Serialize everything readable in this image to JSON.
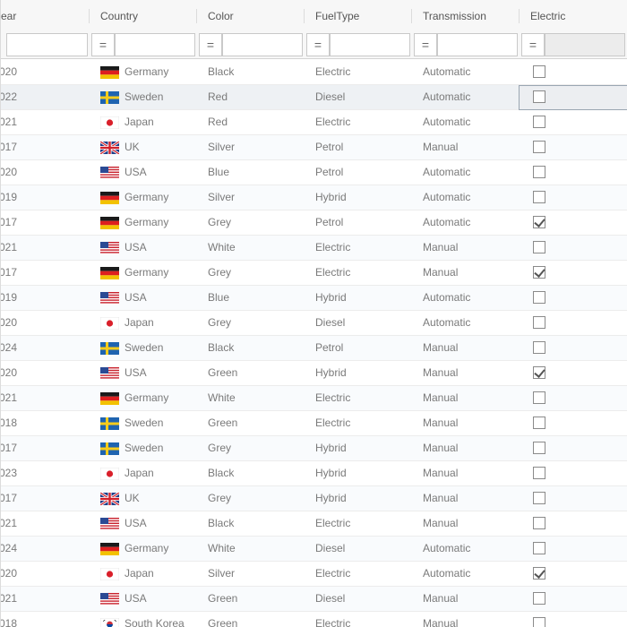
{
  "columns": [
    "ear",
    "Country",
    "Color",
    "FuelType",
    "Transmission",
    "Electric"
  ],
  "filter": {
    "operator": "=",
    "values": [
      "",
      "",
      "",
      "",
      "",
      ""
    ]
  },
  "selected_row": 1,
  "rows": [
    {
      "year": "020",
      "country": "Germany",
      "flag": "de",
      "color": "Black",
      "fuel": "Electric",
      "transmission": "Automatic",
      "electric": false
    },
    {
      "year": "022",
      "country": "Sweden",
      "flag": "se",
      "color": "Red",
      "fuel": "Diesel",
      "transmission": "Automatic",
      "electric": false
    },
    {
      "year": "021",
      "country": "Japan",
      "flag": "jp",
      "color": "Red",
      "fuel": "Electric",
      "transmission": "Automatic",
      "electric": false
    },
    {
      "year": "017",
      "country": "UK",
      "flag": "uk",
      "color": "Silver",
      "fuel": "Petrol",
      "transmission": "Manual",
      "electric": false
    },
    {
      "year": "020",
      "country": "USA",
      "flag": "us",
      "color": "Blue",
      "fuel": "Petrol",
      "transmission": "Automatic",
      "electric": false
    },
    {
      "year": "019",
      "country": "Germany",
      "flag": "de",
      "color": "Silver",
      "fuel": "Hybrid",
      "transmission": "Automatic",
      "electric": false
    },
    {
      "year": "017",
      "country": "Germany",
      "flag": "de",
      "color": "Grey",
      "fuel": "Petrol",
      "transmission": "Automatic",
      "electric": true
    },
    {
      "year": "021",
      "country": "USA",
      "flag": "us",
      "color": "White",
      "fuel": "Electric",
      "transmission": "Manual",
      "electric": false
    },
    {
      "year": "017",
      "country": "Germany",
      "flag": "de",
      "color": "Grey",
      "fuel": "Electric",
      "transmission": "Manual",
      "electric": true
    },
    {
      "year": "019",
      "country": "USA",
      "flag": "us",
      "color": "Blue",
      "fuel": "Hybrid",
      "transmission": "Automatic",
      "electric": false
    },
    {
      "year": "020",
      "country": "Japan",
      "flag": "jp",
      "color": "Grey",
      "fuel": "Diesel",
      "transmission": "Automatic",
      "electric": false
    },
    {
      "year": "024",
      "country": "Sweden",
      "flag": "se",
      "color": "Black",
      "fuel": "Petrol",
      "transmission": "Manual",
      "electric": false
    },
    {
      "year": "020",
      "country": "USA",
      "flag": "us",
      "color": "Green",
      "fuel": "Hybrid",
      "transmission": "Manual",
      "electric": true
    },
    {
      "year": "021",
      "country": "Germany",
      "flag": "de",
      "color": "White",
      "fuel": "Electric",
      "transmission": "Manual",
      "electric": false
    },
    {
      "year": "018",
      "country": "Sweden",
      "flag": "se",
      "color": "Green",
      "fuel": "Electric",
      "transmission": "Manual",
      "electric": false
    },
    {
      "year": "017",
      "country": "Sweden",
      "flag": "se",
      "color": "Grey",
      "fuel": "Hybrid",
      "transmission": "Manual",
      "electric": false
    },
    {
      "year": "023",
      "country": "Japan",
      "flag": "jp",
      "color": "Black",
      "fuel": "Hybrid",
      "transmission": "Manual",
      "electric": false
    },
    {
      "year": "017",
      "country": "UK",
      "flag": "uk",
      "color": "Grey",
      "fuel": "Hybrid",
      "transmission": "Manual",
      "electric": false
    },
    {
      "year": "021",
      "country": "USA",
      "flag": "us",
      "color": "Black",
      "fuel": "Electric",
      "transmission": "Manual",
      "electric": false
    },
    {
      "year": "024",
      "country": "Germany",
      "flag": "de",
      "color": "White",
      "fuel": "Diesel",
      "transmission": "Automatic",
      "electric": false
    },
    {
      "year": "020",
      "country": "Japan",
      "flag": "jp",
      "color": "Silver",
      "fuel": "Electric",
      "transmission": "Automatic",
      "electric": true
    },
    {
      "year": "021",
      "country": "USA",
      "flag": "us",
      "color": "Green",
      "fuel": "Diesel",
      "transmission": "Manual",
      "electric": false
    },
    {
      "year": "018",
      "country": "South Korea",
      "flag": "kr",
      "color": "Green",
      "fuel": "Electric",
      "transmission": "Manual",
      "electric": false
    }
  ],
  "colors": {
    "header_bg": "#f7f7f7",
    "row_alt": "#f9fbfd",
    "row_selected": "#eef1f4",
    "text": "#7a7a7a",
    "border": "#dcdcdc"
  }
}
